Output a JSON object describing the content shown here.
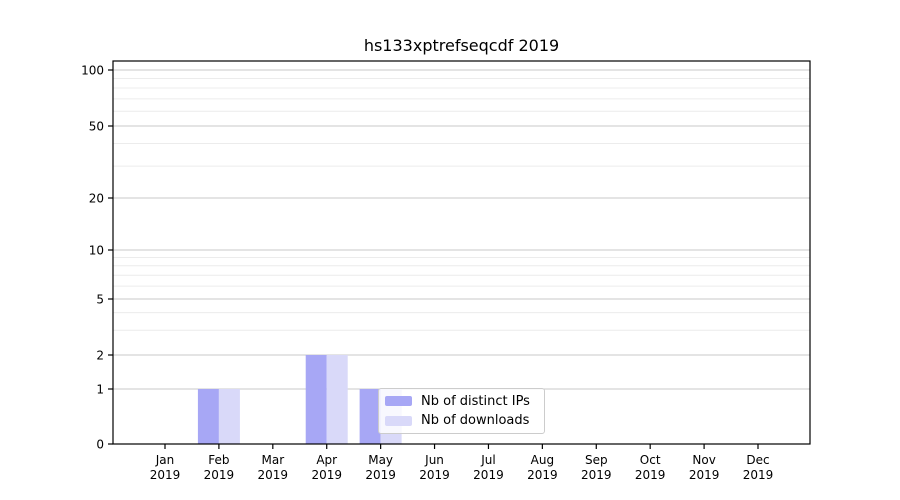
{
  "figure": {
    "title": "hs133xptrefseqcdf 2019"
  },
  "chart_data": {
    "type": "bar",
    "title": "hs133xptrefseqcdf 2019",
    "xlabel": "",
    "ylabel": "",
    "x_categories": [
      "Jan",
      "Feb",
      "Mar",
      "Apr",
      "May",
      "Jun",
      "Jul",
      "Aug",
      "Sep",
      "Oct",
      "Nov",
      "Dec"
    ],
    "x_year_sublabel": "2019",
    "series": [
      {
        "name": "Nb of distinct IPs",
        "color": "#a7a7f5",
        "values": [
          0,
          1,
          0,
          2,
          1,
          0,
          0,
          0,
          0,
          0,
          0,
          0
        ]
      },
      {
        "name": "Nb of downloads",
        "color": "#d9d9f9",
        "values": [
          0,
          1,
          0,
          2,
          1,
          0,
          0,
          0,
          0,
          0,
          0,
          0
        ]
      }
    ],
    "y_ticks": [
      0,
      1,
      2,
      5,
      10,
      20,
      50,
      100
    ],
    "y_minor_gridline_values": [
      3,
      4,
      6,
      7,
      8,
      9,
      30,
      40,
      60,
      70,
      80,
      90
    ],
    "y_scale": "log-like with zero baseline",
    "ylim": [
      0,
      100
    ],
    "grid": "horizontal",
    "legend_position": "inside lower middle"
  },
  "legend": {
    "items": [
      {
        "label": "Nb of distinct IPs",
        "color": "#a7a7f5"
      },
      {
        "label": "Nb of downloads",
        "color": "#d9d9f9"
      }
    ]
  },
  "colors": {
    "background": "#ffffff",
    "spine": "#000000",
    "grid_major": "#c8c8c8",
    "grid_minor": "#ececec",
    "tick_label": "#000000",
    "legend_border": "#cccccc"
  }
}
